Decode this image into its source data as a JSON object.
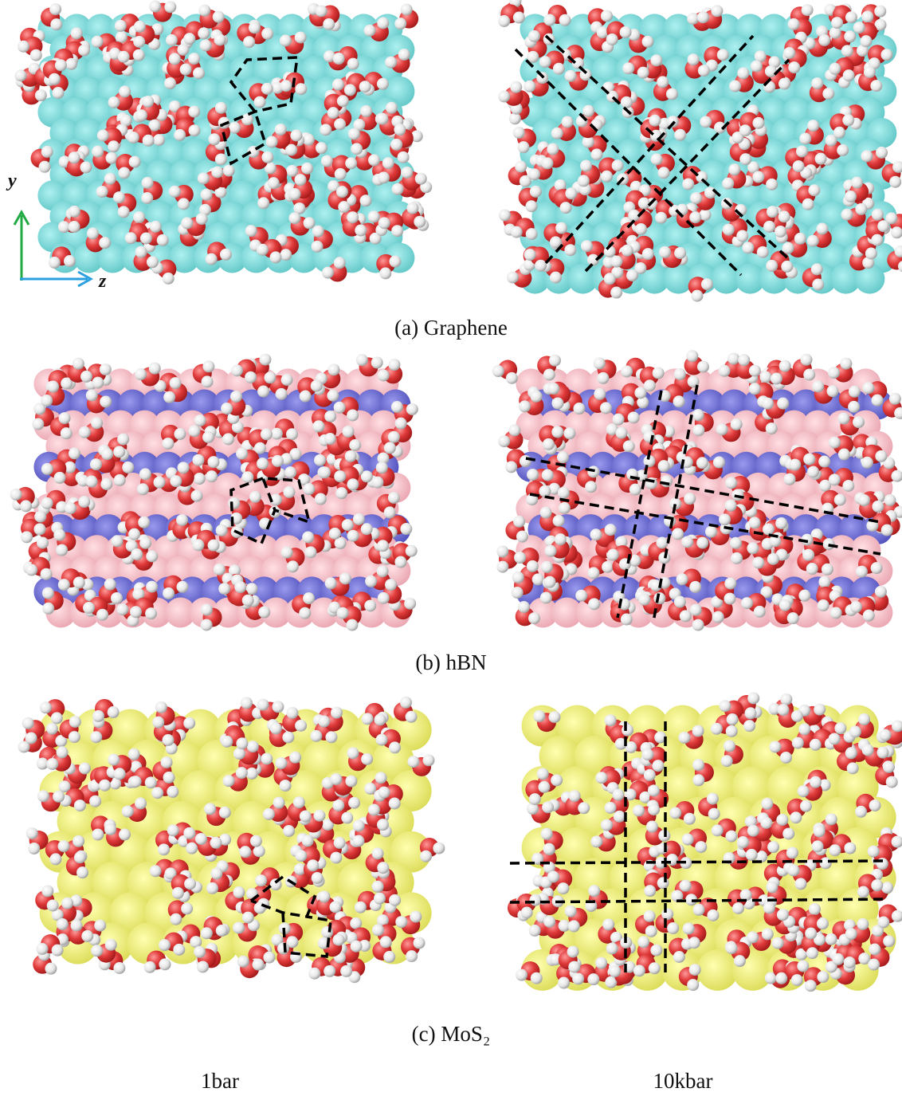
{
  "axes": {
    "y": "y",
    "z": "z"
  },
  "rows": [
    {
      "label": "(a) Graphene"
    },
    {
      "label": "(b) hBN"
    },
    {
      "label": "(c) MoS₂"
    }
  ],
  "columns": [
    "1bar",
    "10kbar"
  ]
}
